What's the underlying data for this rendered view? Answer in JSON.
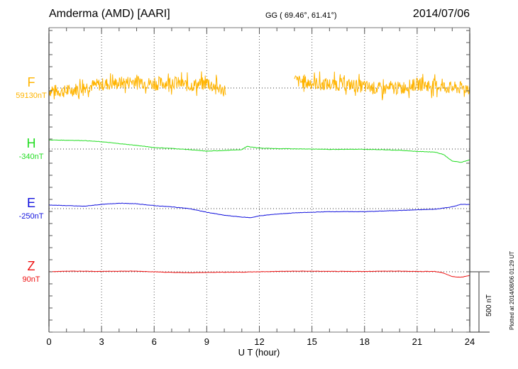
{
  "header": {
    "station": "Amderma (AMD)  [AARI]",
    "coords": "GG ( 69.46°,  61.41°)",
    "date": "2014/07/06"
  },
  "footer": {
    "plotted": "Plotted at 2014/08/06 01:29 UT"
  },
  "chart_data": {
    "type": "line",
    "title": "Amderma (AMD)  [AARI]",
    "xlabel": "U T (hour)",
    "xlim": [
      0,
      24
    ],
    "xticks": [
      "0",
      "3",
      "6",
      "9",
      "12",
      "15",
      "18",
      "21",
      "24"
    ],
    "grid": "vertical dotted every 3 h; horizontal dotted baselines",
    "scale_bar": {
      "label": "500 nT",
      "value_nT": 500
    },
    "minor_tick_nT": 100,
    "series": [
      {
        "name": "F",
        "baseline_label": "59130nT",
        "baseline_nT": 59130,
        "color": "#ffb400",
        "segments": [
          [
            0,
            10.1
          ],
          [
            14,
            24
          ]
        ],
        "x": [
          0,
          1,
          2,
          3,
          4,
          5,
          6,
          7,
          8,
          9,
          10,
          14,
          15,
          16,
          17,
          18,
          19,
          20,
          21,
          22,
          23,
          24
        ],
        "offset_nT": [
          -20,
          -30,
          10,
          30,
          40,
          60,
          30,
          50,
          20,
          40,
          -20,
          60,
          40,
          30,
          30,
          10,
          -10,
          0,
          30,
          20,
          0,
          0
        ],
        "noise_nT": 90
      },
      {
        "name": "H",
        "baseline_label": "-340nT",
        "baseline_nT": -340,
        "color": "#22dd22",
        "x": [
          0,
          1,
          2,
          3,
          4,
          5,
          6,
          7,
          8,
          9,
          10,
          11,
          11.3,
          12,
          13,
          14,
          15,
          16,
          17,
          18,
          19,
          20,
          21,
          22,
          22.5,
          23,
          23.5,
          24
        ],
        "offset_nT": [
          75,
          73,
          70,
          60,
          45,
          30,
          12,
          5,
          -5,
          -18,
          -12,
          -5,
          22,
          8,
          3,
          2,
          0,
          -3,
          -2,
          -3,
          -5,
          -10,
          -20,
          -25,
          -45,
          -100,
          -110,
          -90
        ]
      },
      {
        "name": "E",
        "baseline_label": "-250nT",
        "baseline_nT": -250,
        "color": "#1010dd",
        "x": [
          0,
          1,
          2,
          3,
          4,
          5,
          6,
          7,
          8,
          9,
          10,
          11,
          11.5,
          12,
          13,
          14,
          15,
          16,
          17,
          18,
          19,
          20,
          21,
          22,
          23,
          23.5,
          24
        ],
        "offset_nT": [
          30,
          25,
          20,
          35,
          45,
          40,
          25,
          15,
          0,
          -30,
          -55,
          -70,
          -75,
          -60,
          -45,
          -35,
          -30,
          -25,
          -25,
          -25,
          -20,
          -15,
          -10,
          -5,
          15,
          35,
          35
        ]
      },
      {
        "name": "Z",
        "baseline_label": "90nT",
        "baseline_nT": 90,
        "color": "#ee1111",
        "x": [
          0,
          1,
          2,
          3,
          4,
          5,
          6,
          7,
          8,
          9,
          10,
          11,
          12,
          13,
          14,
          15,
          16,
          17,
          18,
          19,
          20,
          21,
          22,
          22.5,
          23,
          23.5,
          24
        ],
        "offset_nT": [
          0,
          5,
          5,
          3,
          5,
          5,
          0,
          -5,
          -8,
          -5,
          -3,
          -3,
          0,
          3,
          5,
          5,
          3,
          3,
          3,
          5,
          5,
          3,
          3,
          -10,
          -40,
          -45,
          -30
        ]
      }
    ]
  }
}
